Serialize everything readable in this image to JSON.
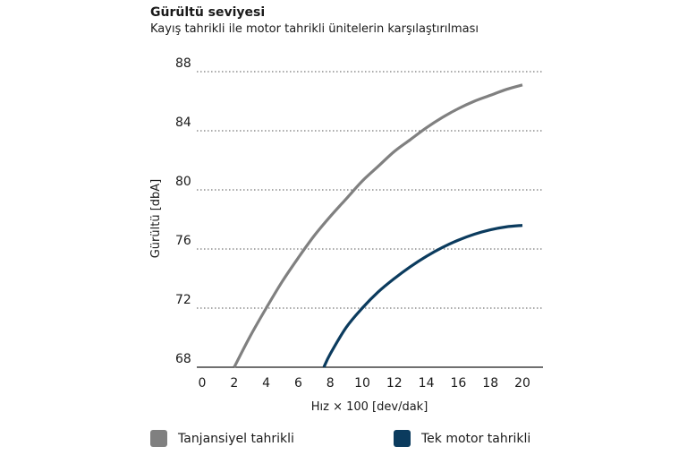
{
  "chart_data": {
    "type": "line",
    "title": "Gürültü seviyesi",
    "subtitle": "Kayış tahrikli ile motor tahrikli ünitelerin karşılaştırılması",
    "xlabel": "Hız × 100 [dev/dak]",
    "ylabel": "Gürültü [dbA]",
    "xlim": [
      0,
      20
    ],
    "ylim": [
      68,
      88
    ],
    "xticks": [
      "0",
      "2",
      "4",
      "6",
      "8",
      "10",
      "12",
      "14",
      "16",
      "18",
      "20"
    ],
    "yticks": [
      "68",
      "72",
      "76",
      "80",
      "84",
      "88"
    ],
    "grid": "horizontal-dotted",
    "legend_position": "bottom",
    "series": [
      {
        "name": "Tanjansiyel tahrikli",
        "color": "#808080",
        "x": [
          2,
          3,
          4,
          5,
          6,
          7,
          8,
          9,
          10,
          11,
          12,
          13,
          14,
          15,
          16,
          17,
          18,
          19,
          20
        ],
        "y": [
          68,
          70.1,
          72.0,
          73.8,
          75.4,
          76.9,
          78.2,
          79.4,
          80.6,
          81.6,
          82.6,
          83.4,
          84.2,
          84.9,
          85.5,
          86.0,
          86.4,
          86.8,
          87.1
        ]
      },
      {
        "name": "Tek motor tahrikli",
        "color": "#0b3b5e",
        "x": [
          7.6,
          8,
          9,
          10,
          11,
          12,
          13,
          14,
          15,
          16,
          17,
          18,
          19,
          20
        ],
        "y": [
          68,
          68.9,
          70.7,
          72.0,
          73.1,
          74.0,
          74.8,
          75.5,
          76.1,
          76.6,
          77.0,
          77.3,
          77.5,
          77.6
        ]
      }
    ]
  }
}
